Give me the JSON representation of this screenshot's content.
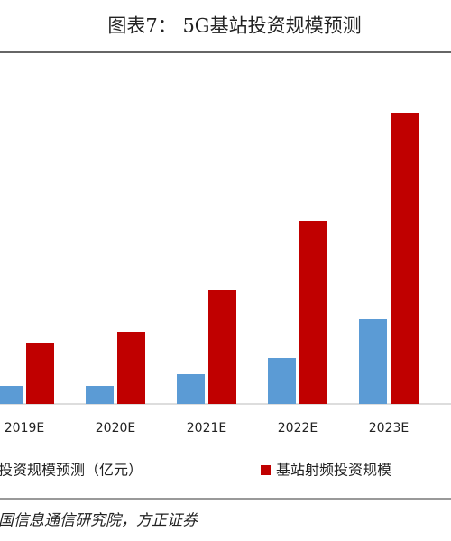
{
  "chart_data": {
    "type": "bar",
    "title": "图表7：  5G基站投资规模预测",
    "categories": [
      "2019E",
      "2020E",
      "2021E",
      "2022E",
      "2023E"
    ],
    "series": [
      {
        "name": "投资规模预测（亿元）",
        "color": "#5b9bd5",
        "values": [
          20,
          20,
          33,
          51,
          94
        ]
      },
      {
        "name": "基站射频投资规模",
        "color": "#c00000",
        "values": [
          68,
          80,
          126,
          203,
          323
        ]
      }
    ],
    "source": "国信息通信研究院，方正证券"
  }
}
